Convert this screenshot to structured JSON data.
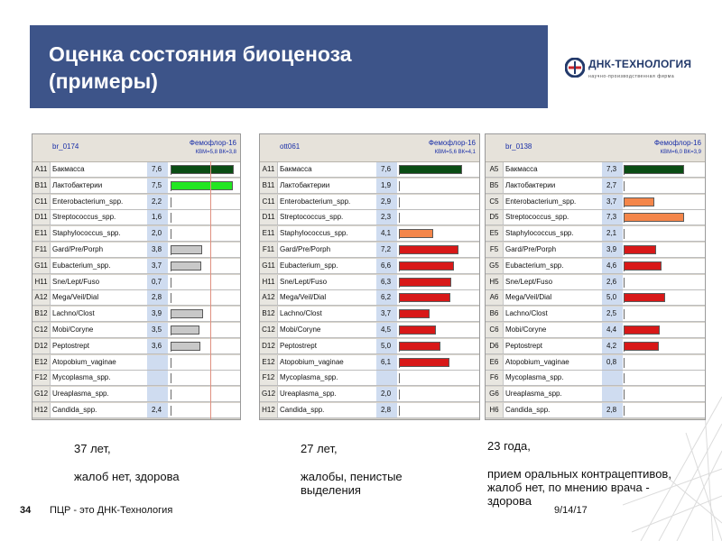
{
  "slide": {
    "title_line1": "Оценка состояния биоценоза",
    "title_line2": "(примеры)",
    "logo_text": "ДНК-ТЕХНОЛОГИЯ",
    "logo_sub": "научно-производственная фирма",
    "footer_num": "34",
    "footer_text": "ПЦР - это ДНК-Технология",
    "footer_date": "9/14/17",
    "colors": {
      "header": "#3d5489",
      "dark_green": "#0b4d14",
      "green": "#22e622",
      "grey": "#c8c8c8",
      "red": "#d81818",
      "orange": "#f4864a"
    }
  },
  "panels": [
    {
      "id": "br_0174",
      "test": "Фемофлор-16",
      "kvm": "КВМ=5,8  ВК=3,8",
      "note": [
        "37 лет,",
        "",
        "жалоб нет, здорова"
      ],
      "rows": [
        {
          "code": "A11",
          "name": "Бакмасса",
          "value": "7,6",
          "v": 7.6,
          "color": "dark_green"
        },
        {
          "code": "B11",
          "name": "Лактобактерии",
          "value": "7,5",
          "v": 7.5,
          "color": "green"
        },
        {
          "code": "C11",
          "name": "Enterobacterium_spp.",
          "value": "2,2",
          "v": 2.2,
          "color": "none"
        },
        {
          "code": "D11",
          "name": "Streptococcus_spp.",
          "value": "1,6",
          "v": 1.6,
          "color": "none"
        },
        {
          "code": "E11",
          "name": "Staphylococcus_spp.",
          "value": "2,0",
          "v": 2.0,
          "color": "none"
        },
        {
          "code": "F11",
          "name": "Gard/Pre/Porph",
          "value": "3,8",
          "v": 3.8,
          "color": "grey"
        },
        {
          "code": "G11",
          "name": "Eubacterium_spp.",
          "value": "3,7",
          "v": 3.7,
          "color": "grey"
        },
        {
          "code": "H11",
          "name": "Sne/Lept/Fuso",
          "value": "0,7",
          "v": 0.7,
          "color": "none"
        },
        {
          "code": "A12",
          "name": "Mega/Veil/Dial",
          "value": "2,8",
          "v": 2.8,
          "color": "none"
        },
        {
          "code": "B12",
          "name": "Lachno/Clost",
          "value": "3,9",
          "v": 3.9,
          "color": "grey"
        },
        {
          "code": "C12",
          "name": "Mobi/Coryne",
          "value": "3,5",
          "v": 3.5,
          "color": "grey"
        },
        {
          "code": "D12",
          "name": "Peptostrept",
          "value": "3,6",
          "v": 3.6,
          "color": "grey"
        },
        {
          "code": "E12",
          "name": "Atopobium_vaginae",
          "value": "",
          "v": null,
          "color": "none"
        },
        {
          "code": "F12",
          "name": "Mycoplasma_spp.",
          "value": "",
          "v": null,
          "color": "none"
        },
        {
          "code": "G12",
          "name": "Ureaplasma_spp.",
          "value": "",
          "v": null,
          "color": "none"
        },
        {
          "code": "H12",
          "name": "Candida_spp.",
          "value": "2,4",
          "v": 2.4,
          "color": "none"
        }
      ]
    },
    {
      "id": "ott061",
      "test": "Фемофлор-16",
      "kvm": "КВМ=5,6  ВК=4,1",
      "note": [
        "27 лет,",
        "",
        "жалобы, пенистые",
        "выделения"
      ],
      "rows": [
        {
          "code": "A11",
          "name": "Бакмасса",
          "value": "7,6",
          "v": 7.6,
          "color": "dark_green"
        },
        {
          "code": "B11",
          "name": "Лактобактерии",
          "value": "1,9",
          "v": 1.9,
          "color": "none"
        },
        {
          "code": "C11",
          "name": "Enterobacterium_spp.",
          "value": "2,9",
          "v": 2.9,
          "color": "none"
        },
        {
          "code": "D11",
          "name": "Streptococcus_spp.",
          "value": "2,3",
          "v": 2.3,
          "color": "none"
        },
        {
          "code": "E11",
          "name": "Staphylococcus_spp.",
          "value": "4,1",
          "v": 4.1,
          "color": "orange"
        },
        {
          "code": "F11",
          "name": "Gard/Pre/Porph",
          "value": "7,2",
          "v": 7.2,
          "color": "red"
        },
        {
          "code": "G11",
          "name": "Eubacterium_spp.",
          "value": "6,6",
          "v": 6.6,
          "color": "red"
        },
        {
          "code": "H11",
          "name": "Sne/Lept/Fuso",
          "value": "6,3",
          "v": 6.3,
          "color": "red"
        },
        {
          "code": "A12",
          "name": "Mega/Veil/Dial",
          "value": "6,2",
          "v": 6.2,
          "color": "red"
        },
        {
          "code": "B12",
          "name": "Lachno/Clost",
          "value": "3,7",
          "v": 3.7,
          "color": "red"
        },
        {
          "code": "C12",
          "name": "Mobi/Coryne",
          "value": "4,5",
          "v": 4.5,
          "color": "red"
        },
        {
          "code": "D12",
          "name": "Peptostrept",
          "value": "5,0",
          "v": 5.0,
          "color": "red"
        },
        {
          "code": "E12",
          "name": "Atopobium_vaginae",
          "value": "6,1",
          "v": 6.1,
          "color": "red"
        },
        {
          "code": "F12",
          "name": "Mycoplasma_spp.",
          "value": "",
          "v": null,
          "color": "none"
        },
        {
          "code": "G12",
          "name": "Ureaplasma_spp.",
          "value": "2,0",
          "v": 2.0,
          "color": "none"
        },
        {
          "code": "H12",
          "name": "Candida_spp.",
          "value": "2,8",
          "v": 2.8,
          "color": "none"
        }
      ]
    },
    {
      "id": "br_0138",
      "test": "Фемофлор-16",
      "kvm": "КВМ=6,0  ВК=3,9",
      "note": [
        "23 года,",
        "",
        "прием оральных контрацептивов,",
        "жалоб нет, по мнению врача -",
        "здорова"
      ],
      "rows": [
        {
          "code": "A5",
          "name": "Бакмасса",
          "value": "7,3",
          "v": 7.3,
          "color": "dark_green"
        },
        {
          "code": "B5",
          "name": "Лактобактерии",
          "value": "2,7",
          "v": 2.7,
          "color": "none"
        },
        {
          "code": "C5",
          "name": "Enterobacterium_spp.",
          "value": "3,7",
          "v": 3.7,
          "color": "orange"
        },
        {
          "code": "D5",
          "name": "Streptococcus_spp.",
          "value": "7,3",
          "v": 7.3,
          "color": "orange"
        },
        {
          "code": "E5",
          "name": "Staphylococcus_spp.",
          "value": "2,1",
          "v": 2.1,
          "color": "none"
        },
        {
          "code": "F5",
          "name": "Gard/Pre/Porph",
          "value": "3,9",
          "v": 3.9,
          "color": "red"
        },
        {
          "code": "G5",
          "name": "Eubacterium_spp.",
          "value": "4,6",
          "v": 4.6,
          "color": "red"
        },
        {
          "code": "H5",
          "name": "Sne/Lept/Fuso",
          "value": "2,6",
          "v": 2.6,
          "color": "none"
        },
        {
          "code": "A6",
          "name": "Mega/Veil/Dial",
          "value": "5,0",
          "v": 5.0,
          "color": "red"
        },
        {
          "code": "B6",
          "name": "Lachno/Clost",
          "value": "2,5",
          "v": 2.5,
          "color": "none"
        },
        {
          "code": "C6",
          "name": "Mobi/Coryne",
          "value": "4,4",
          "v": 4.4,
          "color": "red"
        },
        {
          "code": "D6",
          "name": "Peptostrept",
          "value": "4,2",
          "v": 4.2,
          "color": "red"
        },
        {
          "code": "E6",
          "name": "Atopobium_vaginae",
          "value": "0,8",
          "v": 0.8,
          "color": "none"
        },
        {
          "code": "F6",
          "name": "Mycoplasma_spp.",
          "value": "",
          "v": null,
          "color": "none"
        },
        {
          "code": "G6",
          "name": "Ureaplasma_spp.",
          "value": "",
          "v": null,
          "color": "none"
        },
        {
          "code": "H6",
          "name": "Candida_spp.",
          "value": "2,8",
          "v": 2.8,
          "color": "none"
        }
      ]
    }
  ]
}
